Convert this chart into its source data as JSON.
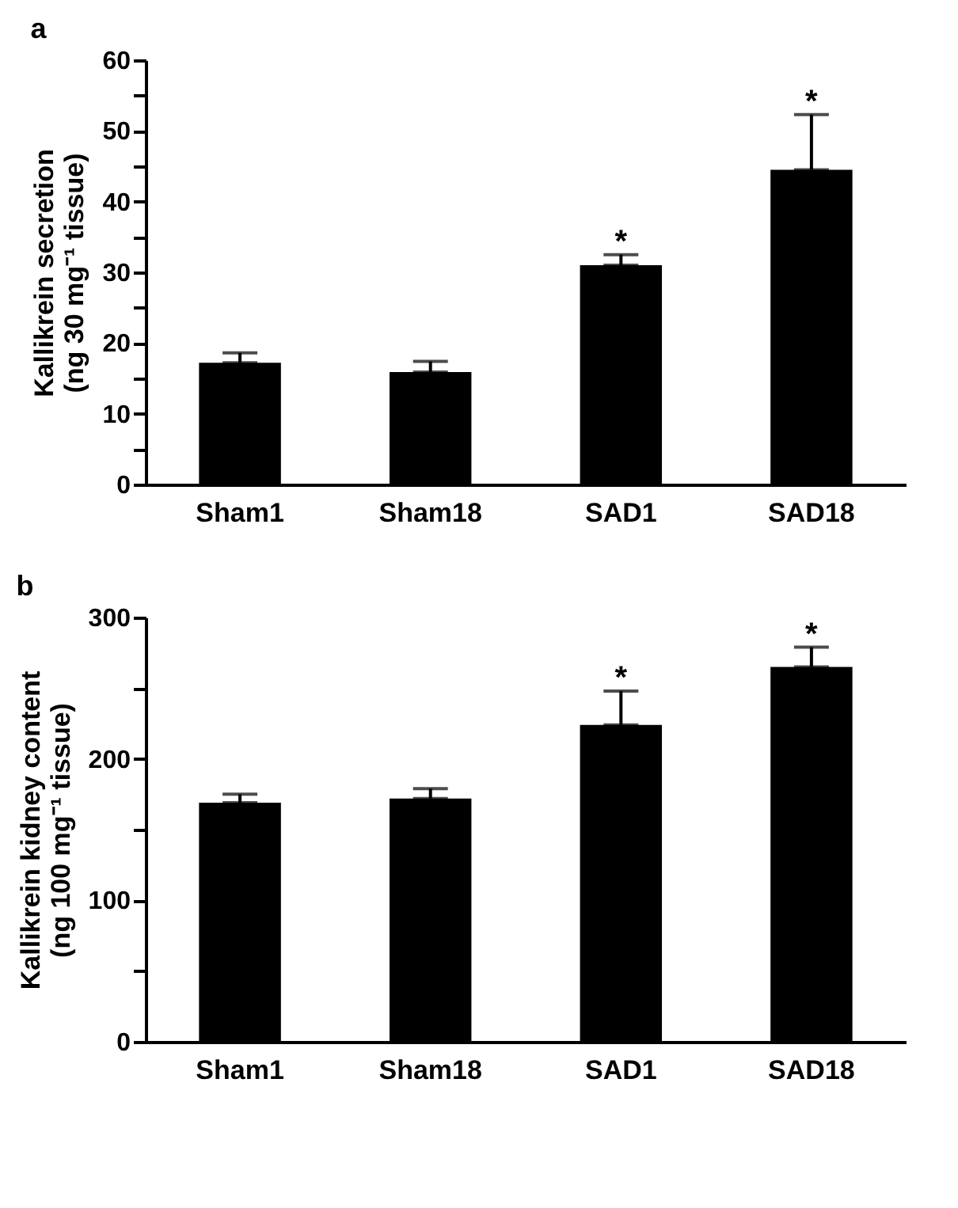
{
  "chart_data": [
    {
      "type": "bar",
      "title": "a",
      "ylabel": "Kallikrein secretion\n(ng 30 mg⁻¹ tissue)",
      "categories": [
        "Sham1",
        "Sham18",
        "SAD1",
        "SAD18"
      ],
      "values": [
        17.2,
        15.9,
        31.0,
        44.5
      ],
      "errors": [
        [
          17.2,
          18.6
        ],
        [
          15.9,
          17.4
        ],
        [
          31.0,
          32.5
        ],
        [
          44.5,
          52.3
        ]
      ],
      "color": "#000000",
      "ylim": [
        0,
        60
      ],
      "yticks": [
        0,
        {
          "value": 5,
          "label": null
        },
        10,
        {
          "value": 15,
          "label": null
        },
        20,
        {
          "value": 25,
          "label": null
        },
        30,
        {
          "value": 35,
          "label": null
        },
        40,
        {
          "value": 45,
          "label": null
        },
        50,
        {
          "value": 55,
          "label": null
        },
        60
      ],
      "grid": false,
      "annotations": [
        {
          "text": "*",
          "x": "SAD1",
          "y": 32.5
        },
        {
          "text": "*",
          "x": "SAD18",
          "y": 52.3
        }
      ]
    },
    {
      "type": "bar",
      "title": "b",
      "ylabel": "Kallikrein kidney content\n(ng 100 mg⁻¹ tissue)",
      "categories": [
        "Sham1",
        "Sham18",
        "SAD1",
        "SAD18"
      ],
      "values": [
        169,
        172,
        224,
        265
      ],
      "errors": [
        [
          169,
          175
        ],
        [
          172,
          179
        ],
        [
          224,
          248
        ],
        [
          265,
          279
        ]
      ],
      "color": "#000000",
      "ylim": [
        0,
        300
      ],
      "yticks": [
        0,
        {
          "value": 50,
          "label": null
        },
        100,
        {
          "value": 150,
          "label": null
        },
        200,
        {
          "value": 250,
          "label": null
        },
        300
      ],
      "grid": false,
      "annotations": [
        {
          "text": "*",
          "x": "SAD1",
          "y": 248
        },
        {
          "text": "*",
          "x": "SAD18",
          "y": 279
        }
      ]
    }
  ]
}
